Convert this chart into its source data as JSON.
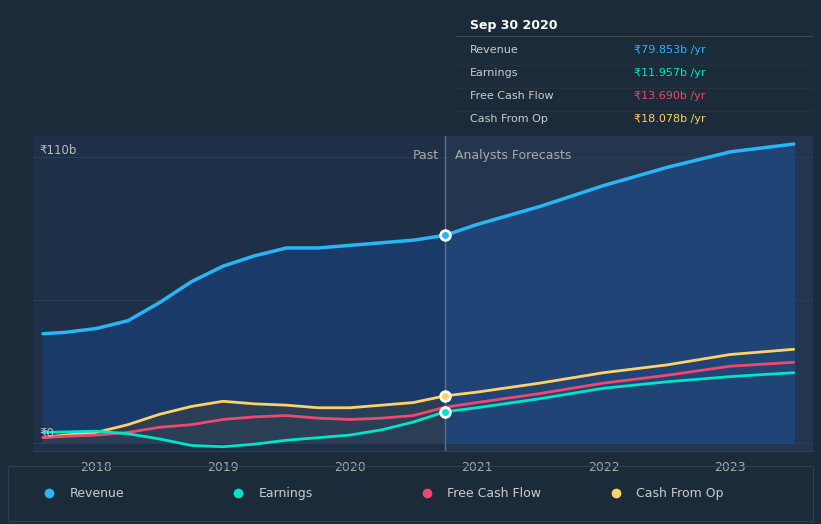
{
  "bg_color": "#1c2b3a",
  "chart_bg_past": "#1e3048",
  "chart_bg_future": "#243550",
  "divider_x": 2020.75,
  "title_label": "₹110b",
  "zero_label": "₹0",
  "past_label": "Past",
  "forecast_label": "Analysts Forecasts",
  "xlabel_ticks": [
    2018,
    2019,
    2020,
    2021,
    2022,
    2023
  ],
  "xmin": 2017.5,
  "xmax": 2023.65,
  "ymin": -3,
  "ymax": 118,
  "tooltip": {
    "date": "Sep 30 2020",
    "rows": [
      {
        "label": "Revenue",
        "value": "₹79.853b /yr",
        "color": "#29b6f6"
      },
      {
        "label": "Earnings",
        "value": "₹11.957b /yr",
        "color": "#00e5c8"
      },
      {
        "label": "Free Cash Flow",
        "value": "₹13.690b /yr",
        "color": "#ef476f"
      },
      {
        "label": "Cash From Op",
        "value": "₹18.078b /yr",
        "color": "#ffd166"
      }
    ]
  },
  "revenue": {
    "x": [
      2017.58,
      2017.75,
      2018.0,
      2018.25,
      2018.5,
      2018.75,
      2019.0,
      2019.25,
      2019.5,
      2019.75,
      2020.0,
      2020.25,
      2020.5,
      2020.75,
      2021.0,
      2021.5,
      2022.0,
      2022.5,
      2023.0,
      2023.5
    ],
    "y": [
      42,
      42.5,
      44,
      47,
      54,
      62,
      68,
      72,
      75,
      75,
      76,
      77,
      78,
      79.853,
      84,
      91,
      99,
      106,
      112,
      115
    ],
    "color": "#29b6f6",
    "lw": 2.5
  },
  "earnings": {
    "x": [
      2017.58,
      2017.75,
      2018.0,
      2018.25,
      2018.5,
      2018.75,
      2019.0,
      2019.25,
      2019.5,
      2019.75,
      2020.0,
      2020.25,
      2020.5,
      2020.75,
      2021.0,
      2021.5,
      2022.0,
      2022.5,
      2023.0,
      2023.5
    ],
    "y": [
      4,
      4.2,
      4.5,
      3.5,
      1.5,
      -1,
      -1.5,
      -0.5,
      1,
      2,
      3,
      5,
      8,
      11.957,
      13.5,
      17,
      21,
      23.5,
      25.5,
      27
    ],
    "color": "#00e5c8",
    "lw": 2.0
  },
  "fcf": {
    "x": [
      2017.58,
      2017.75,
      2018.0,
      2018.25,
      2018.5,
      2018.75,
      2019.0,
      2019.25,
      2019.5,
      2019.75,
      2020.0,
      2020.25,
      2020.5,
      2020.75,
      2021.0,
      2021.5,
      2022.0,
      2022.5,
      2023.0,
      2023.5
    ],
    "y": [
      2,
      2.5,
      3,
      4,
      6,
      7,
      9,
      10,
      10.5,
      9.5,
      9,
      9.5,
      10.5,
      13.69,
      15.5,
      19,
      23,
      26,
      29.5,
      31
    ],
    "color": "#ef476f",
    "lw": 2.0
  },
  "cfo": {
    "x": [
      2017.58,
      2017.75,
      2018.0,
      2018.25,
      2018.5,
      2018.75,
      2019.0,
      2019.25,
      2019.5,
      2019.75,
      2020.0,
      2020.25,
      2020.5,
      2020.75,
      2021.0,
      2021.5,
      2022.0,
      2022.5,
      2023.0,
      2023.5
    ],
    "y": [
      2,
      3,
      4,
      7,
      11,
      14,
      16,
      15,
      14.5,
      13.5,
      13.5,
      14.5,
      15.5,
      18.078,
      19.5,
      23,
      27,
      30,
      34,
      36
    ],
    "color": "#ffd166",
    "lw": 2.0
  },
  "legend": [
    {
      "label": "Revenue",
      "color": "#29b6f6"
    },
    {
      "label": "Earnings",
      "color": "#00e5c8"
    },
    {
      "label": "Free Cash Flow",
      "color": "#ef476f"
    },
    {
      "label": "Cash From Op",
      "color": "#ffd166"
    }
  ]
}
